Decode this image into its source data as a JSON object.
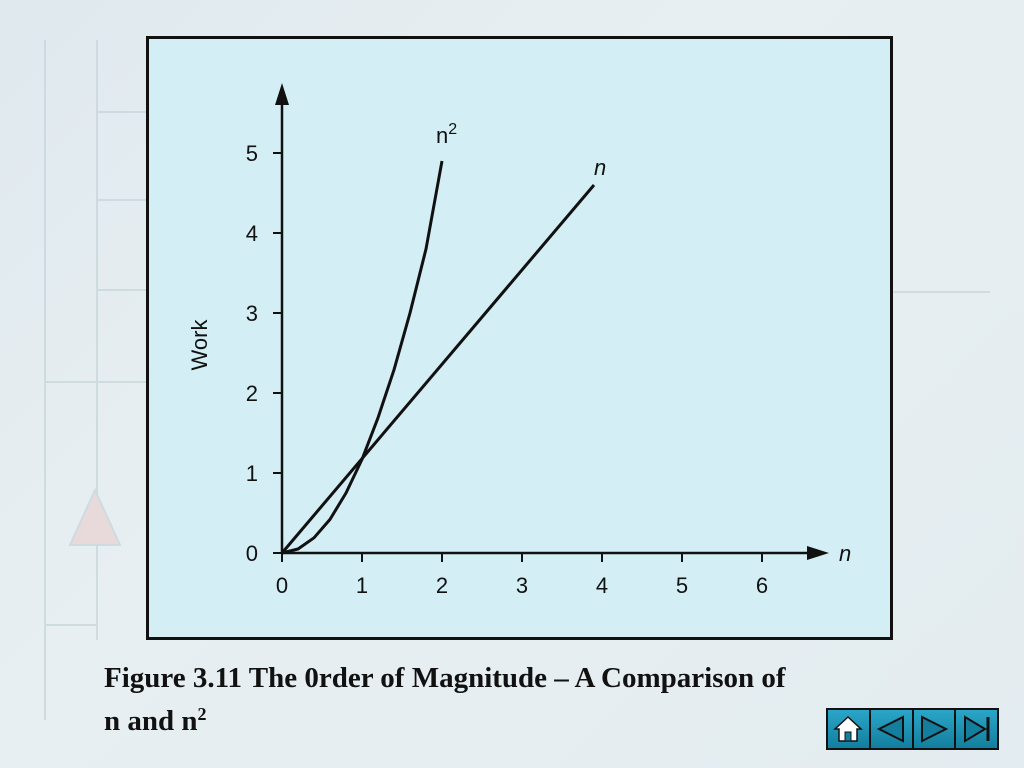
{
  "caption": {
    "line1": "Figure 3.11  The 0rder of Magnitude – A Comparison of",
    "line2_prefix": "n and n",
    "line2_sup": "2"
  },
  "navigation": {
    "buttons": [
      {
        "name": "home-button",
        "icon": "home-icon"
      },
      {
        "name": "previous-button",
        "icon": "triangle-left-icon"
      },
      {
        "name": "next-button",
        "icon": "triangle-right-icon"
      },
      {
        "name": "last-button",
        "icon": "skip-end-icon"
      }
    ],
    "accent_color": "#1a8fb0"
  },
  "chart_data": {
    "type": "line",
    "title": "",
    "xlabel": "n",
    "ylabel": "Work",
    "xlim": [
      0,
      6.8
    ],
    "ylim": [
      0,
      5.6
    ],
    "xticks": [
      0,
      1,
      2,
      3,
      4,
      5,
      6
    ],
    "yticks": [
      0,
      1,
      2,
      3,
      4,
      5
    ],
    "grid": false,
    "background": "#d4eef5",
    "series": [
      {
        "name": "n",
        "label_base": "n",
        "label_sup": "",
        "x": [
          0,
          3.9
        ],
        "y": [
          0,
          4.6
        ]
      },
      {
        "name": "n2",
        "label_base": "n",
        "label_sup": "2",
        "x": [
          0,
          0.2,
          0.4,
          0.6,
          0.8,
          1.0,
          1.2,
          1.4,
          1.6,
          1.8,
          2.0
        ],
        "y": [
          0,
          0.05,
          0.19,
          0.42,
          0.75,
          1.17,
          1.69,
          2.29,
          3.0,
          3.8,
          4.9
        ]
      }
    ]
  }
}
